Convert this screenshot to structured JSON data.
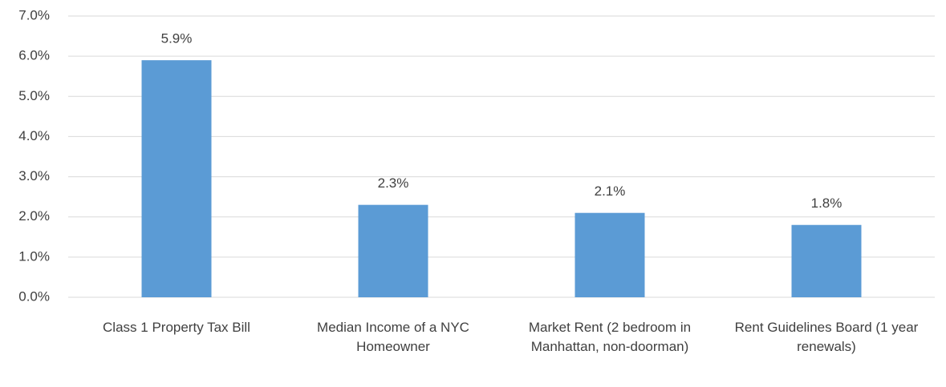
{
  "chart_data": {
    "type": "bar",
    "categories": [
      "Class 1 Property Tax Bill",
      "Median Income of a NYC Homeowner",
      "Market Rent (2 bedroom in Manhattan, non-doorman)",
      "Rent Guidelines Board (1 year renewals)"
    ],
    "values": [
      5.9,
      2.3,
      2.1,
      1.8
    ],
    "value_labels": [
      "5.9%",
      "2.3%",
      "2.1%",
      "1.8%"
    ],
    "color": "#5b9bd5",
    "ylim": [
      0,
      7
    ],
    "yticks": [
      {
        "value": 0,
        "label": "0.0%"
      },
      {
        "value": 1,
        "label": "1.0%"
      },
      {
        "value": 2,
        "label": "2.0%"
      },
      {
        "value": 3,
        "label": "3.0%"
      },
      {
        "value": 4,
        "label": "4.0%"
      },
      {
        "value": 5,
        "label": "5.0%"
      },
      {
        "value": 6,
        "label": "6.0%"
      },
      {
        "value": 7,
        "label": "7.0%"
      }
    ],
    "grid": true
  }
}
